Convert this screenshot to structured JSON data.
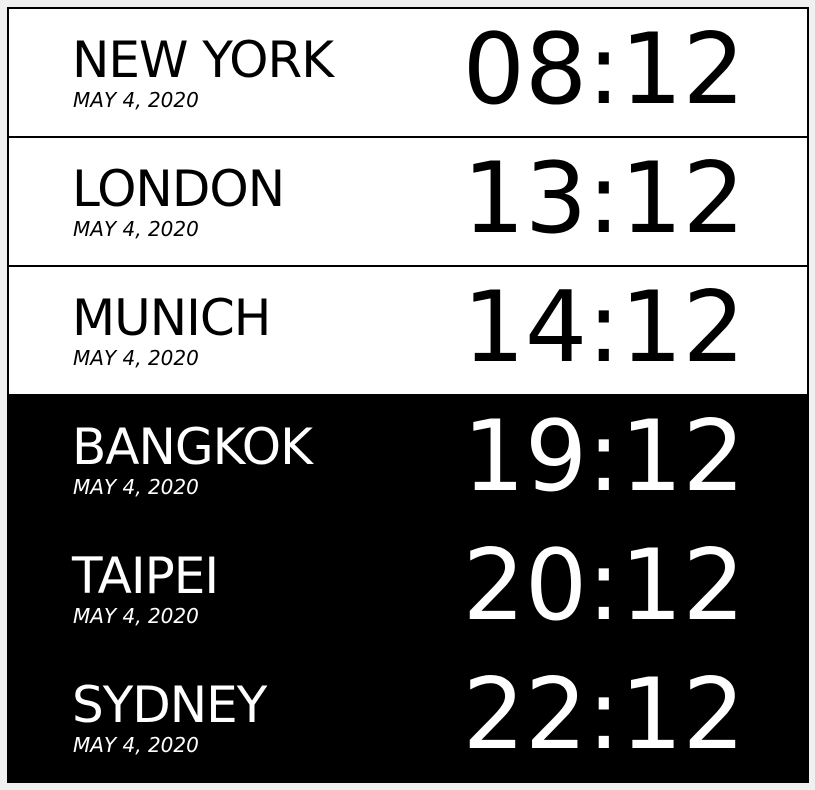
{
  "clocks": [
    {
      "city": "NEW YORK",
      "date": "MAY 4, 2020",
      "time": "08:12",
      "theme": "light"
    },
    {
      "city": "LONDON",
      "date": "MAY 4, 2020",
      "time": "13:12",
      "theme": "light"
    },
    {
      "city": "MUNICH",
      "date": "MAY 4, 2020",
      "time": "14:12",
      "theme": "light"
    },
    {
      "city": "BANGKOK",
      "date": "MAY 4, 2020",
      "time": "19:12",
      "theme": "dark"
    },
    {
      "city": "TAIPEI",
      "date": "MAY 4, 2020",
      "time": "20:12",
      "theme": "dark"
    },
    {
      "city": "SYDNEY",
      "date": "MAY 4, 2020",
      "time": "22:12",
      "theme": "dark"
    }
  ],
  "colors": {
    "light_bg": "#ffffff",
    "dark_bg": "#000000",
    "border": "#000000"
  }
}
